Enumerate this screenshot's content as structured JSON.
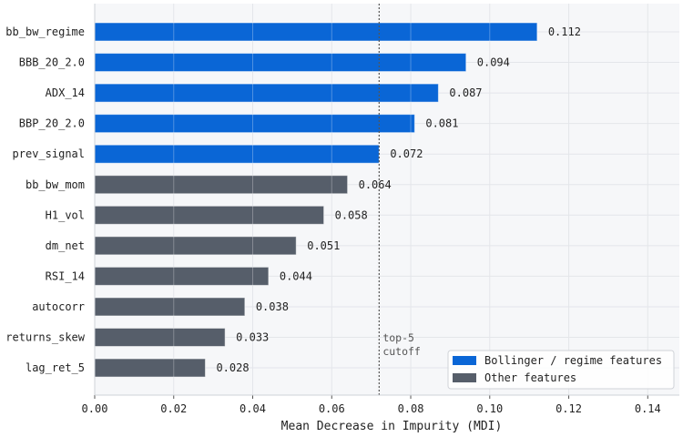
{
  "chart_data": {
    "type": "bar",
    "orientation": "horizontal",
    "categories": [
      "bb_bw_regime",
      "BBB_20_2.0",
      "ADX_14",
      "BBP_20_2.0",
      "prev_signal",
      "bb_bw_mom",
      "H1_vol",
      "dm_net",
      "RSI_14",
      "autocorr",
      "returns_skew",
      "lag_ret_5"
    ],
    "values": [
      0.112,
      0.094,
      0.087,
      0.081,
      0.072,
      0.064,
      0.058,
      0.051,
      0.044,
      0.038,
      0.033,
      0.028
    ],
    "value_labels": [
      "0.112",
      "0.094",
      "0.087",
      "0.081",
      "0.072",
      "0.064",
      "0.058",
      "0.051",
      "0.044",
      "0.038",
      "0.033",
      "0.028"
    ],
    "groups": [
      "bollinger",
      "bollinger",
      "bollinger",
      "bollinger",
      "bollinger",
      "other",
      "other",
      "other",
      "other",
      "other",
      "other",
      "other"
    ],
    "title": "",
    "xlabel": "Mean Decrease in Impurity (MDI)",
    "ylabel": "",
    "xlim": [
      0,
      0.148
    ],
    "x_ticks": [
      0.0,
      0.02,
      0.04,
      0.06,
      0.08,
      0.1,
      0.12,
      0.14
    ],
    "x_tick_labels": [
      "0.00",
      "0.02",
      "0.04",
      "0.06",
      "0.08",
      "0.10",
      "0.12",
      "0.14"
    ],
    "grid": true,
    "cutoff": {
      "value": 0.072,
      "label_line1": "top-5",
      "label_line2": "cutoff"
    },
    "legend": {
      "position": "bottom-right",
      "entries": [
        {
          "key": "bollinger",
          "label": "Bollinger / regime features",
          "color": "#0a66d6"
        },
        {
          "key": "other",
          "label": "Other features",
          "color": "#565e6a"
        }
      ]
    },
    "colors": {
      "bollinger": "#0a66d6",
      "other": "#565e6a",
      "plot_background": "#f6f7f9",
      "grid": "#e4e6ea",
      "cutoff_line": "#555555"
    }
  }
}
